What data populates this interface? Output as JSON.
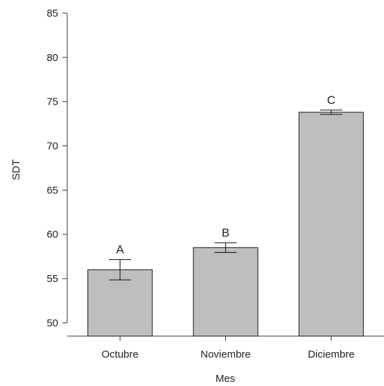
{
  "chart_data": {
    "type": "bar",
    "categories": [
      "Octubre",
      "Noviembre",
      "Diciembre"
    ],
    "values": [
      56.0,
      58.5,
      73.8
    ],
    "error": [
      1.15,
      0.55,
      0.25
    ],
    "letters": [
      "A",
      "B",
      "C"
    ],
    "xlabel": "Mes",
    "ylabel": "SDT",
    "ylim": [
      48.5,
      85
    ],
    "yticks": [
      50,
      55,
      60,
      65,
      70,
      75,
      80,
      85
    ],
    "bar_color": "#bebebe",
    "grid": false
  }
}
